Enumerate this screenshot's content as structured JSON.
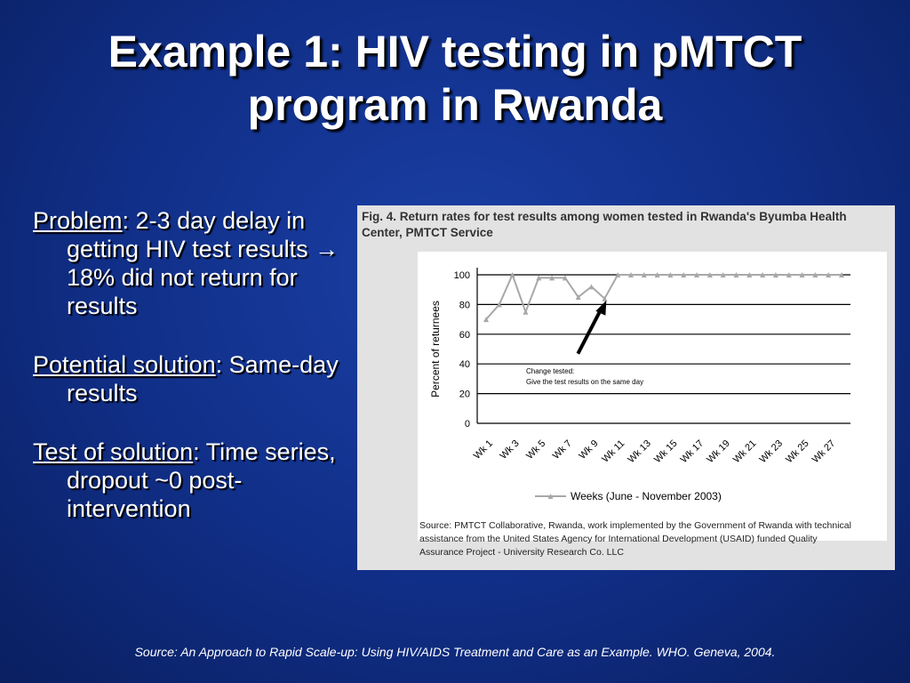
{
  "slide": {
    "title_line1": "Example 1: HIV testing in pMTCT",
    "title_line2": "program in Rwanda",
    "bullets": [
      {
        "label": "Problem",
        "text": ": 2-3 day delay in getting HIV test results → 18% did not return for results"
      },
      {
        "label": "Potential solution",
        "text": ": Same-day results"
      },
      {
        "label": "Test of solution",
        "text": ": Time series, dropout ~0 post-intervention"
      }
    ],
    "footer": "Source: An Approach to Rapid Scale-up: Using HIV/AIDS Treatment and Care as an Example. WHO. Geneva, 2004."
  },
  "figure": {
    "caption": "Fig. 4. Return rates for test results among women tested in Rwanda's Byumba Health Center, PMTCT Service",
    "source_line1": "Source: PMTCT Collaborative, Rwanda, work implemented by the Government of Rwanda with technical",
    "source_line2": "assistance from the United States Agency for International Development (USAID) funded Quality",
    "source_line3": "Assurance Project - University Research Co. LLC"
  },
  "chart_data": {
    "type": "line",
    "title": "",
    "ylabel": "Percent of returnees",
    "xlabel": "",
    "ylim": [
      0,
      100
    ],
    "yticks": [
      0,
      20,
      40,
      60,
      80,
      100
    ],
    "grid": true,
    "tick_labels": [
      "Wk 1",
      "Wk 3",
      "Wk 5",
      "Wk 7",
      "Wk 9",
      "Wk 11",
      "Wk 13",
      "Wk 15",
      "Wk 17",
      "Wk 19",
      "Wk 21",
      "Wk 23",
      "Wk 25",
      "Wk 27"
    ],
    "series": [
      {
        "name": "Weeks (June - November 2003)",
        "color": "#a8a8a8",
        "values": [
          70,
          80,
          100,
          75,
          98,
          98,
          98,
          85,
          92,
          84,
          100,
          100,
          100,
          100,
          100,
          100,
          100,
          100,
          100,
          100,
          100,
          100,
          100,
          100,
          100,
          100,
          100,
          100
        ]
      }
    ],
    "annotation": {
      "line1": "Change tested:",
      "line2": "Give the test results on the same day",
      "points_to_week": 10
    },
    "legend": "bottom"
  }
}
